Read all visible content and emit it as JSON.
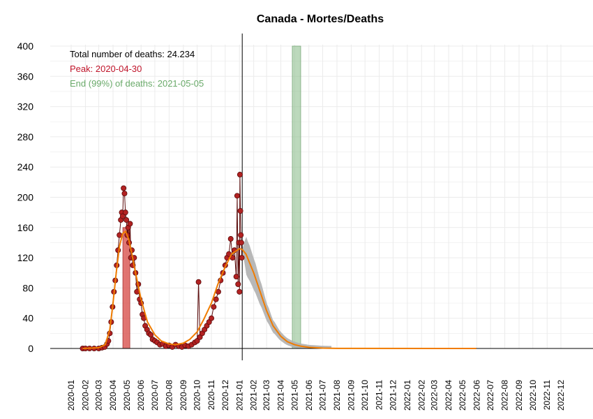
{
  "chart_data": {
    "type": "line",
    "title": "Canada - Mortes/Deaths",
    "xlabel": "",
    "ylabel": "",
    "ylim": [
      0,
      400
    ],
    "yticks": [
      "0",
      "40",
      "80",
      "120",
      "160",
      "200",
      "240",
      "280",
      "320",
      "360",
      "400"
    ],
    "xticks": [
      "2020-01",
      "2020-02",
      "2020-03",
      "2020-04",
      "2020-05",
      "2020-06",
      "2020-07",
      "2020-08",
      "2020-09",
      "2020-10",
      "2020-11",
      "2020-12",
      "2021-01",
      "2021-02",
      "2021-03",
      "2021-04",
      "2021-05",
      "2021-06",
      "2021-07",
      "2021-08",
      "2021-09",
      "2021-10",
      "2021-11",
      "2021-12",
      "2022-01",
      "2022-02",
      "2022-03",
      "2022-04",
      "2022-05",
      "2022-06",
      "2022-07",
      "2022-08",
      "2022-09",
      "2022-10",
      "2022-11",
      "2022-12"
    ],
    "grid": true,
    "annotations": {
      "total": "Total number of deaths: 24.234",
      "peak": "Peak: 2020-04-30",
      "end": "End (99%) of deaths: 2021-05-05"
    },
    "colors": {
      "observed": "#b22222",
      "observed_edge": "#5a0a0a",
      "fit": "#f07c00",
      "band": "#b0b0b0",
      "peak_bar": "#d9534f",
      "end_bar": "#8fbf8f",
      "peak_text": "#c0142a",
      "end_text": "#6aaa6a"
    },
    "current_date": "2021-01-07",
    "peak_bar": {
      "date": "2020-04-30",
      "value": 160
    },
    "end_bar": {
      "date": "2021-05-05"
    },
    "fit_end_date": "2022-05-31",
    "band_start_date": "2021-01-07",
    "band_end_date": "2021-07-20",
    "series": [
      {
        "points": [
          [
            "2020-01-26",
            0
          ],
          [
            "2020-02-01",
            0
          ],
          [
            "2020-02-10",
            0
          ],
          [
            "2020-02-20",
            0
          ],
          [
            "2020-03-01",
            0
          ],
          [
            "2020-03-08",
            1
          ],
          [
            "2020-03-14",
            2
          ],
          [
            "2020-03-19",
            6
          ],
          [
            "2020-03-22",
            10
          ],
          [
            "2020-03-25",
            20
          ],
          [
            "2020-03-28",
            35
          ],
          [
            "2020-03-31",
            55
          ],
          [
            "2020-04-03",
            75
          ],
          [
            "2020-04-06",
            90
          ],
          [
            "2020-04-09",
            110
          ],
          [
            "2020-04-12",
            130
          ],
          [
            "2020-04-15",
            150
          ],
          [
            "2020-04-18",
            170
          ],
          [
            "2020-04-20",
            180
          ],
          [
            "2020-04-22",
            175
          ],
          [
            "2020-04-24",
            212
          ],
          [
            "2020-04-26",
            205
          ],
          [
            "2020-04-28",
            180
          ],
          [
            "2020-04-30",
            170
          ],
          [
            "2020-05-02",
            150
          ],
          [
            "2020-05-04",
            160
          ],
          [
            "2020-05-06",
            140
          ],
          [
            "2020-05-08",
            165
          ],
          [
            "2020-05-10",
            120
          ],
          [
            "2020-05-12",
            130
          ],
          [
            "2020-05-14",
            110
          ],
          [
            "2020-05-17",
            120
          ],
          [
            "2020-05-20",
            100
          ],
          [
            "2020-05-23",
            75
          ],
          [
            "2020-05-26",
            85
          ],
          [
            "2020-05-29",
            65
          ],
          [
            "2020-06-01",
            60
          ],
          [
            "2020-06-04",
            45
          ],
          [
            "2020-06-07",
            40
          ],
          [
            "2020-06-10",
            30
          ],
          [
            "2020-06-14",
            25
          ],
          [
            "2020-06-18",
            20
          ],
          [
            "2020-06-22",
            18
          ],
          [
            "2020-06-26",
            12
          ],
          [
            "2020-07-01",
            10
          ],
          [
            "2020-07-06",
            8
          ],
          [
            "2020-07-12",
            5
          ],
          [
            "2020-07-18",
            6
          ],
          [
            "2020-07-25",
            3
          ],
          [
            "2020-08-01",
            4
          ],
          [
            "2020-08-08",
            2
          ],
          [
            "2020-08-15",
            5
          ],
          [
            "2020-08-22",
            3
          ],
          [
            "2020-08-29",
            2
          ],
          [
            "2020-09-05",
            4
          ],
          [
            "2020-09-12",
            3
          ],
          [
            "2020-09-19",
            5
          ],
          [
            "2020-09-26",
            8
          ],
          [
            "2020-10-01",
            10
          ],
          [
            "2020-10-04",
            88
          ],
          [
            "2020-10-07",
            15
          ],
          [
            "2020-10-12",
            20
          ],
          [
            "2020-10-17",
            25
          ],
          [
            "2020-10-22",
            30
          ],
          [
            "2020-10-27",
            35
          ],
          [
            "2020-11-01",
            40
          ],
          [
            "2020-11-06",
            55
          ],
          [
            "2020-11-11",
            65
          ],
          [
            "2020-11-16",
            75
          ],
          [
            "2020-11-21",
            90
          ],
          [
            "2020-11-26",
            100
          ],
          [
            "2020-12-01",
            110
          ],
          [
            "2020-12-05",
            120
          ],
          [
            "2020-12-09",
            125
          ],
          [
            "2020-12-13",
            145
          ],
          [
            "2020-12-17",
            120
          ],
          [
            "2020-12-21",
            130
          ],
          [
            "2020-12-25",
            95
          ],
          [
            "2020-12-27",
            202
          ],
          [
            "2020-12-29",
            85
          ],
          [
            "2020-12-31",
            140
          ],
          [
            "2021-01-01",
            75
          ],
          [
            "2021-01-02",
            230
          ],
          [
            "2021-01-03",
            182
          ],
          [
            "2021-01-04",
            150
          ],
          [
            "2021-01-05",
            140
          ],
          [
            "2021-01-06",
            120
          ]
        ]
      },
      {
        "points": [
          [
            "2020-01-26",
            0
          ],
          [
            "2020-03-01",
            1
          ],
          [
            "2020-03-15",
            5
          ],
          [
            "2020-03-25",
            25
          ],
          [
            "2020-04-01",
            60
          ],
          [
            "2020-04-08",
            100
          ],
          [
            "2020-04-15",
            135
          ],
          [
            "2020-04-22",
            152
          ],
          [
            "2020-04-28",
            155
          ],
          [
            "2020-05-05",
            145
          ],
          [
            "2020-05-12",
            125
          ],
          [
            "2020-05-20",
            100
          ],
          [
            "2020-06-01",
            65
          ],
          [
            "2020-06-15",
            35
          ],
          [
            "2020-07-01",
            18
          ],
          [
            "2020-07-15",
            10
          ],
          [
            "2020-08-01",
            6
          ],
          [
            "2020-08-15",
            5
          ],
          [
            "2020-09-01",
            7
          ],
          [
            "2020-09-15",
            12
          ],
          [
            "2020-10-01",
            22
          ],
          [
            "2020-10-15",
            38
          ],
          [
            "2020-11-01",
            60
          ],
          [
            "2020-11-15",
            85
          ],
          [
            "2020-12-01",
            108
          ],
          [
            "2020-12-15",
            125
          ],
          [
            "2021-01-01",
            132
          ],
          [
            "2021-01-07",
            131
          ],
          [
            "2021-01-15",
            125
          ],
          [
            "2021-02-01",
            100
          ],
          [
            "2021-02-15",
            75
          ],
          [
            "2021-03-01",
            50
          ],
          [
            "2021-03-15",
            30
          ],
          [
            "2021-04-01",
            16
          ],
          [
            "2021-04-15",
            9
          ],
          [
            "2021-05-01",
            5
          ],
          [
            "2021-05-15",
            3
          ],
          [
            "2021-06-01",
            1.5
          ],
          [
            "2021-07-01",
            0.5
          ],
          [
            "2021-08-01",
            0.1
          ],
          [
            "2022-05-31",
            0
          ]
        ]
      }
    ]
  }
}
